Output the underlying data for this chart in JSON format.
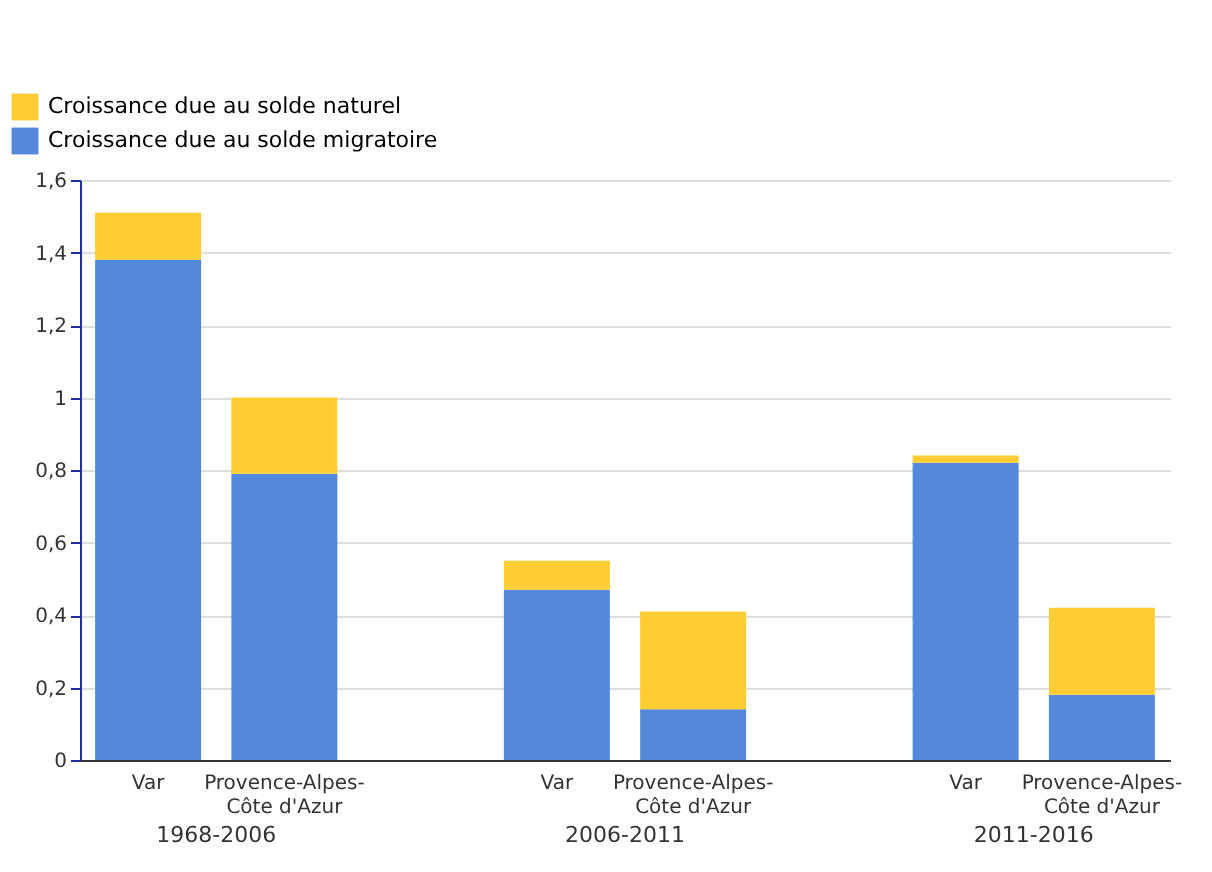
{
  "chart_data": {
    "type": "bar",
    "stacked": true,
    "categories": [
      "Var",
      "Provence-Alpes-Côte d'Azur",
      null,
      "Var",
      "Provence-Alpes-Côte d'Azur",
      null,
      "Var",
      "Provence-Alpes-Côte d'Azur"
    ],
    "series": [
      {
        "name": "Croissance due au solde migratoire",
        "color": "#5588d8",
        "values": [
          1.38,
          0.79,
          null,
          0.47,
          0.14,
          null,
          0.82,
          0.18
        ]
      },
      {
        "name": "Croissance due au solde naturel",
        "color": "#ffcc33",
        "values": [
          0.13,
          0.21,
          null,
          0.08,
          0.27,
          null,
          0.02,
          0.24
        ]
      }
    ],
    "ylim": [
      0,
      1.6
    ],
    "yticks": [
      0,
      {
        "value": 0.2,
        "label": "0,2"
      },
      {
        "value": 0.4,
        "label": "0,4"
      },
      {
        "value": 0.6,
        "label": "0,6"
      },
      {
        "value": 0.8,
        "label": "0,8"
      },
      1,
      {
        "value": 1.2,
        "label": "1,2"
      },
      {
        "value": 1.4,
        "label": "1,4"
      },
      {
        "value": 1.6,
        "label": "1,6"
      }
    ],
    "annotations": [
      "1968-2006",
      "2006-2011",
      "2011-2016"
    ],
    "grid": "y",
    "legend": "top left"
  }
}
